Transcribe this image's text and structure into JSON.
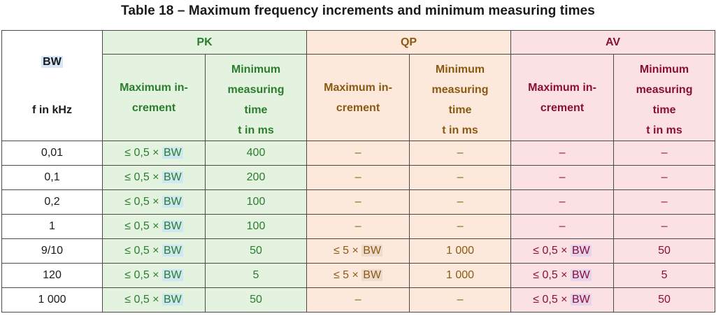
{
  "title": "Table 18 – Maximum frequency increments and minimum measuring times",
  "header": {
    "bw_top": "BW",
    "bw_bottom": "f in kHz",
    "groups": {
      "pk": "PK",
      "qp": "QP",
      "av": "AV"
    },
    "inc_label": "Maximum in-\ncrement",
    "time_label": "Minimum measuring time",
    "time_unit": "t in ms"
  },
  "rows": [
    {
      "f": "0,01",
      "pk_inc": "≤ 0,5 × ",
      "pk_time": "400",
      "qp_inc": "–",
      "qp_time": "–",
      "av_inc": "–",
      "av_time": "–"
    },
    {
      "f": "0,1",
      "pk_inc": "≤ 0,5 × ",
      "pk_time": "200",
      "qp_inc": "–",
      "qp_time": "–",
      "av_inc": "–",
      "av_time": "–"
    },
    {
      "f": "0,2",
      "pk_inc": "≤ 0,5 × ",
      "pk_time": "100",
      "qp_inc": "–",
      "qp_time": "–",
      "av_inc": "–",
      "av_time": "–"
    },
    {
      "f": "1",
      "pk_inc": "≤ 0,5 × ",
      "pk_time": "100",
      "qp_inc": "–",
      "qp_time": "–",
      "av_inc": "–",
      "av_time": "–"
    },
    {
      "f": "9/10",
      "pk_inc": "≤ 0,5 × ",
      "pk_time": "50",
      "qp_inc": "≤ 5 × ",
      "qp_time": "1 000",
      "av_inc": "≤ 0,5 × ",
      "av_time": "50"
    },
    {
      "f": "120",
      "pk_inc": "≤ 0,5 × ",
      "pk_time": "5",
      "qp_inc": "≤ 5 × ",
      "qp_time": "1 000",
      "av_inc": "≤ 0,5 × ",
      "av_time": "5"
    },
    {
      "f": "1 000",
      "pk_inc": "≤ 0,5 × ",
      "pk_time": "50",
      "qp_inc": "–",
      "qp_time": "–",
      "av_inc": "≤ 0,5 × ",
      "av_time": "50"
    }
  ],
  "bw_token": "BW"
}
